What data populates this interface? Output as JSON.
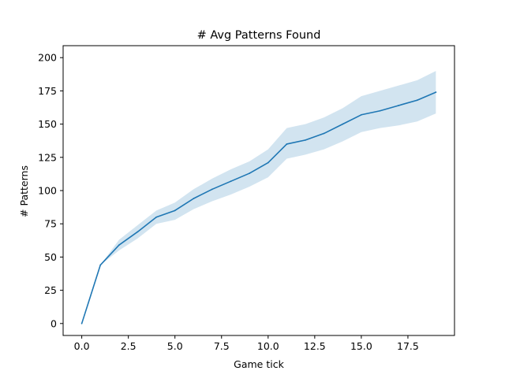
{
  "chart_data": {
    "type": "line",
    "title": "# Avg Patterns Found",
    "xlabel": "Game tick",
    "ylabel": "# Patterns",
    "xlim": [
      -1.0,
      20.0
    ],
    "ylim": [
      -9,
      209
    ],
    "x_ticks": [
      0.0,
      2.5,
      5.0,
      7.5,
      10.0,
      12.5,
      15.0,
      17.5
    ],
    "x_tick_labels": [
      "0.0",
      "2.5",
      "5.0",
      "7.5",
      "10.0",
      "12.5",
      "15.0",
      "17.5"
    ],
    "y_ticks": [
      0,
      25,
      50,
      75,
      100,
      125,
      150,
      175,
      200
    ],
    "y_tick_labels": [
      "0",
      "25",
      "50",
      "75",
      "100",
      "125",
      "150",
      "175",
      "200"
    ],
    "grid": false,
    "legend": "none",
    "colors": {
      "line": "#1f77b4",
      "band": "#1f77b4",
      "band_opacity": 0.2,
      "axes": "#000000"
    },
    "series": [
      {
        "x": [
          0,
          1,
          2,
          3,
          4,
          5,
          6,
          7,
          8,
          9,
          10,
          11,
          12,
          13,
          14,
          15,
          16,
          17,
          18,
          19
        ],
        "values": [
          0,
          44,
          59,
          69,
          80,
          85,
          94,
          101,
          107,
          113,
          121,
          135,
          138,
          143,
          150,
          157,
          160,
          164,
          168,
          174
        ],
        "lower": [
          0,
          44,
          55,
          64,
          75,
          78,
          86,
          92,
          97,
          103,
          110,
          124,
          127,
          131,
          137,
          144,
          147,
          149,
          152,
          158
        ],
        "upper": [
          0,
          44,
          63,
          74,
          85,
          91,
          101,
          109,
          116,
          122,
          131,
          147,
          150,
          155,
          162,
          171,
          175,
          179,
          183,
          190
        ]
      }
    ]
  }
}
